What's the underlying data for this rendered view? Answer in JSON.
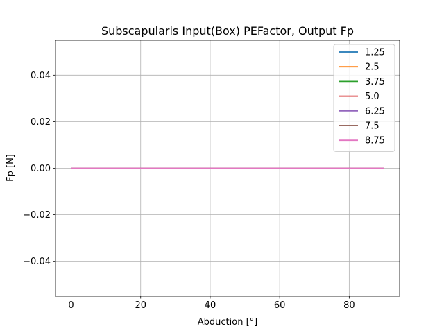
{
  "chart_data": {
    "type": "line",
    "title": "Subscapularis Input(Box) PEFactor, Output Fp",
    "xlabel": "Abduction [°]",
    "ylabel": "Fp [N]",
    "xlim": [
      -4.5,
      94.5
    ],
    "ylim": [
      -0.055,
      0.055
    ],
    "xticks": [
      0,
      20,
      40,
      60,
      80
    ],
    "xtick_labels": [
      "0",
      "20",
      "40",
      "60",
      "80"
    ],
    "yticks": [
      -0.04,
      -0.02,
      0.0,
      0.02,
      0.04
    ],
    "ytick_labels": [
      "−0.04",
      "−0.02",
      "0.00",
      "0.02",
      "0.04"
    ],
    "grid": true,
    "legend_position": "top-right",
    "x": [
      0,
      90
    ],
    "series": [
      {
        "name": "1.25",
        "color": "#1f77b4",
        "values": [
          0,
          0
        ]
      },
      {
        "name": "2.5",
        "color": "#ff7f0e",
        "values": [
          0,
          0
        ]
      },
      {
        "name": "3.75",
        "color": "#2ca02c",
        "values": [
          0,
          0
        ]
      },
      {
        "name": "5.0",
        "color": "#d62728",
        "values": [
          0,
          0
        ]
      },
      {
        "name": "6.25",
        "color": "#9467bd",
        "values": [
          0,
          0
        ]
      },
      {
        "name": "7.5",
        "color": "#8c564b",
        "values": [
          0,
          0
        ]
      },
      {
        "name": "8.75",
        "color": "#e377c2",
        "values": [
          0,
          0
        ]
      }
    ]
  }
}
